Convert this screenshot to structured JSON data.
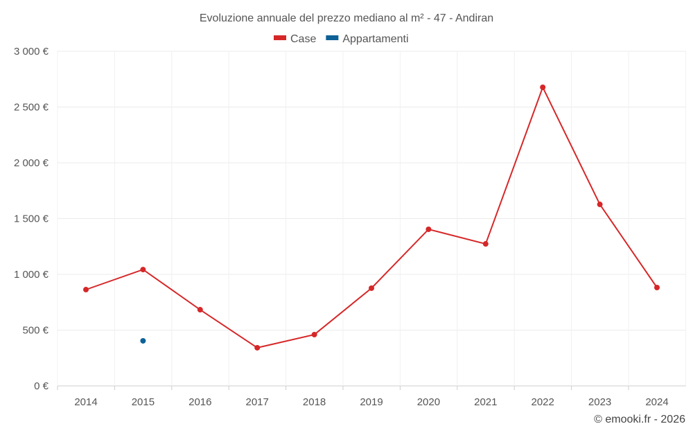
{
  "chart_data": {
    "type": "line",
    "title": "Evoluzione annuale del prezzo mediano al m² - 47 - Andiran",
    "xlabel": "",
    "ylabel": "",
    "categories": [
      "2014",
      "2015",
      "2016",
      "2017",
      "2018",
      "2019",
      "2020",
      "2021",
      "2022",
      "2023",
      "2024"
    ],
    "ylim": [
      0,
      3000
    ],
    "yticks": [
      0,
      500,
      1000,
      1500,
      2000,
      2500,
      3000
    ],
    "ytick_labels": [
      "0 €",
      "500 €",
      "1 000 €",
      "1 500 €",
      "2 000 €",
      "2 500 €",
      "3 000 €"
    ],
    "grid": true,
    "legend_position": "top-center",
    "series": [
      {
        "name": "Case",
        "color": "#d62728",
        "values": [
          863,
          1043,
          683,
          342,
          460,
          876,
          1404,
          1273,
          2677,
          1627,
          882
        ]
      },
      {
        "name": "Appartamenti",
        "color": "#0d6197",
        "values": [
          null,
          404,
          null,
          null,
          null,
          null,
          null,
          null,
          null,
          null,
          null
        ]
      }
    ]
  },
  "credit": "© emooki.fr - 2026"
}
